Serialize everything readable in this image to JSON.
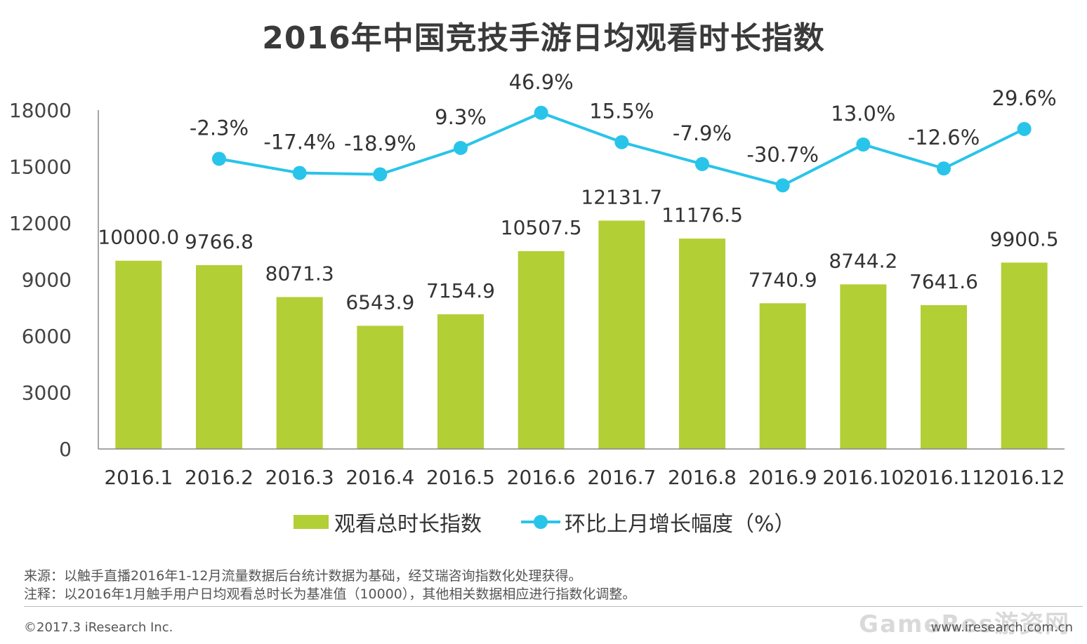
{
  "title": "2016年中国竞技手游日均观看时长指数",
  "chart_data": {
    "type": "bar",
    "categories": [
      "2016.1",
      "2016.2",
      "2016.3",
      "2016.4",
      "2016.5",
      "2016.6",
      "2016.7",
      "2016.8",
      "2016.9",
      "2016.10",
      "2016.11",
      "2016.12"
    ],
    "y_ticks": [
      "0",
      "3000",
      "6000",
      "9000",
      "12000",
      "15000",
      "18000"
    ],
    "ylim": [
      0,
      18000
    ],
    "legend_position": "bottom",
    "grid": false,
    "series": [
      {
        "name": "观看总时长指数",
        "type": "bar",
        "color": "#b2cf36",
        "values": [
          10000.0,
          9766.8,
          8071.3,
          6543.9,
          7154.9,
          10507.5,
          12131.7,
          11176.5,
          7740.9,
          8744.2,
          7641.6,
          9900.5
        ],
        "labels": [
          "10000.0",
          "9766.8",
          "8071.3",
          "6543.9",
          "7154.9",
          "10507.5",
          "12131.7",
          "11176.5",
          "7740.9",
          "8744.2",
          "7641.6",
          "9900.5"
        ]
      },
      {
        "name": "环比上月增长幅度（%）",
        "type": "line",
        "color": "#29c4ea",
        "values": [
          null,
          -2.3,
          -17.4,
          -18.9,
          9.3,
          46.9,
          15.5,
          -7.9,
          -30.7,
          13.0,
          -12.6,
          29.6
        ],
        "labels": [
          "",
          "-2.3%",
          "-17.4%",
          "-18.9%",
          "9.3%",
          "46.9%",
          "15.5%",
          "-7.9%",
          "-30.7%",
          "13.0%",
          "-12.6%",
          "29.6%"
        ]
      }
    ]
  },
  "legend": {
    "bar_label": "观看总时长指数",
    "line_label": "环比上月增长幅度（%）"
  },
  "notes": {
    "source": "来源：以触手直播2016年1-12月流量数据后台统计数据为基础，经艾瑞咨询指数化处理获得。",
    "remark": "注释：以2016年1月触手用户日均观看总时长为基准值（10000），其他相关数据相应进行指数化调整。"
  },
  "footer": {
    "copyright": "©2017.3 iResearch Inc.",
    "site": "www.iresearch.com.cn",
    "watermark": "GameRes游资网"
  }
}
